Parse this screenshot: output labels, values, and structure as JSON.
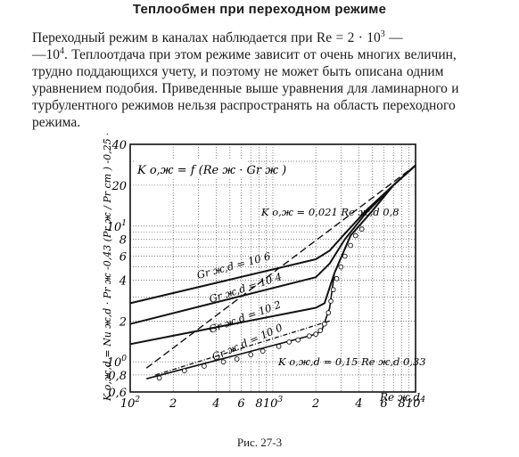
{
  "heading": "Теплообмен при переходном режиме",
  "paragraph": {
    "lines": [
      "Переходный режим в каналах наблюдается при Re = 2 · 10",
      "—10",
      ". Теплоотдача при этом режиме зависит от очень многих величин,",
      "трудно поддающихся учету, и поэтому не может быть описана одним",
      "уравнением подобия. Приведенные выше уравнения для ламинарного и",
      "турбулентного режимов нельзя распространять на область переходного",
      "режима."
    ],
    "exp1": "3",
    "tail1": " —",
    "exp2": "4"
  },
  "figure": {
    "caption": "Рис. 27-3",
    "function_label": "K o,ж = f (Re ж · Gr ж )",
    "ylabel": "K o,ж,d = Nu ж,d · Pr ж -0,43 (Pr ж / Pr ст ) -0,25 · d",
    "xlabel": "Re ж,d",
    "turbulent_label": "K o,ж = 0,021 Re ж,d 0,8",
    "laminar_label": "K o,ж,d = 0,15 Re ж,d 0,33",
    "gr_labels": [
      "Gr ж,d = 10 6",
      "Gr ж,d = 10 4",
      "Gr ж,d = 10 2",
      "Gr ж,d = 10 0"
    ],
    "x_ticks": [
      "10 2",
      "2",
      "4",
      "6",
      "8",
      "10 3",
      "2",
      "4",
      "6",
      "8",
      "10 4"
    ],
    "y_ticks": [
      "0,6",
      "0,8",
      "10 0",
      "2",
      "4",
      "6",
      "8",
      "10 1",
      "20",
      "40"
    ]
  },
  "chart_data": {
    "type": "line",
    "xscale": "log",
    "yscale": "log",
    "xlim": [
      100,
      10000
    ],
    "ylim": [
      0.6,
      40
    ],
    "grid": true,
    "series": [
      {
        "name": "Gr ж,d = 10 6",
        "x": [
          100,
          2000,
          2500,
          3200,
          4500,
          7000,
          10000
        ],
        "y": [
          2.7,
          5.7,
          6.6,
          8.8,
          13,
          20,
          28
        ]
      },
      {
        "name": "Gr ж,d = 10 4",
        "x": [
          100,
          2000,
          2500,
          3200,
          4500,
          7000,
          10000
        ],
        "y": [
          1.9,
          4.2,
          5.3,
          8.0,
          12.5,
          20,
          28
        ]
      },
      {
        "name": "Gr ж,d = 10 2",
        "x": [
          100,
          2000,
          2300,
          2700,
          3500,
          5000,
          7000,
          10000
        ],
        "y": [
          1.35,
          2.5,
          2.7,
          4.5,
          8.5,
          13,
          20,
          28
        ]
      },
      {
        "name": "Gr ж,d = 10 0",
        "x": [
          130,
          2000,
          2200,
          2500,
          2700,
          3500,
          5000,
          7000,
          10000
        ],
        "y": [
          0.75,
          1.6,
          1.7,
          2.5,
          4.5,
          8.5,
          13,
          20,
          28
        ]
      },
      {
        "name": "K o,ж = 0,021 Re ж,d 0,8",
        "x": [
          130,
          10000
        ],
        "y": [
          0.9,
          28
        ]
      },
      {
        "name": "K o,ж,d = 0,15 Re ж,d 0,33",
        "x": [
          150,
          2500
        ],
        "y": [
          0.8,
          2.0
        ]
      }
    ],
    "points": [
      {
        "x": 160,
        "y": 0.76
      },
      {
        "x": 240,
        "y": 0.86
      },
      {
        "x": 330,
        "y": 0.93
      },
      {
        "x": 450,
        "y": 1.0
      },
      {
        "x": 560,
        "y": 1.05
      },
      {
        "x": 700,
        "y": 1.13
      },
      {
        "x": 850,
        "y": 1.2
      },
      {
        "x": 1100,
        "y": 1.3
      },
      {
        "x": 1300,
        "y": 1.4
      },
      {
        "x": 1500,
        "y": 1.45
      },
      {
        "x": 1800,
        "y": 1.55
      },
      {
        "x": 2000,
        "y": 1.6
      },
      {
        "x": 2150,
        "y": 1.7
      },
      {
        "x": 2300,
        "y": 1.9
      },
      {
        "x": 2450,
        "y": 2.3
      },
      {
        "x": 2550,
        "y": 2.8
      },
      {
        "x": 2650,
        "y": 3.4
      },
      {
        "x": 2800,
        "y": 4.1
      },
      {
        "x": 3000,
        "y": 5.0
      },
      {
        "x": 3200,
        "y": 6.0
      },
      {
        "x": 3500,
        "y": 7.2
      },
      {
        "x": 3800,
        "y": 8.5
      },
      {
        "x": 4200,
        "y": 9.5
      }
    ]
  }
}
